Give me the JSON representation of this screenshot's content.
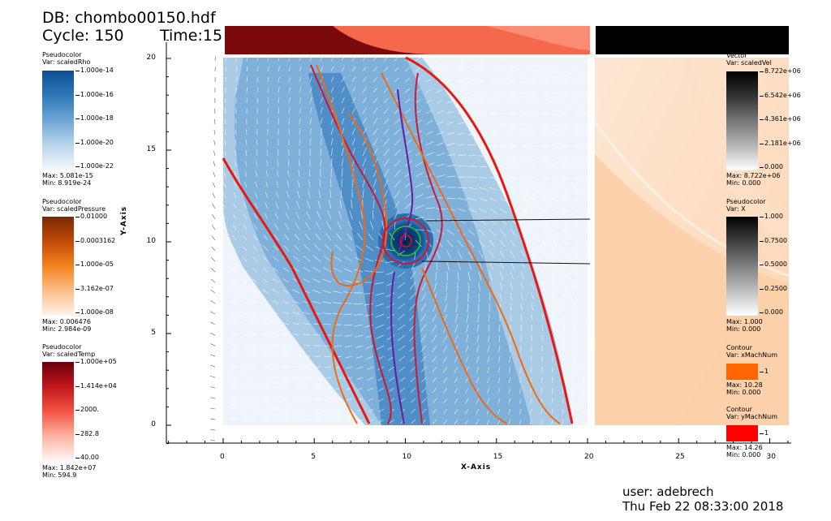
{
  "header": {
    "db": "DB: chombo00150.hdf",
    "cycle": "Cycle: 150",
    "time": "Time:15"
  },
  "footer": {
    "user": "user: adebrech",
    "date": "Thu Feb 22 08:33:00 2018"
  },
  "axes": {
    "xlabel": "X-Axis",
    "ylabel": "Y-Axis",
    "xticks": [
      "0",
      "5",
      "10",
      "15",
      "20",
      "25",
      "30"
    ],
    "yticks": [
      "0",
      "5",
      "10",
      "15",
      "20"
    ],
    "xrange": [
      -3,
      31
    ],
    "yrange": [
      -1,
      21
    ]
  },
  "legends": {
    "rho": {
      "title": "Pseudocolor",
      "var": "Var: scaledRho",
      "ticks": [
        "1.000e-14",
        "1.000e-16",
        "1.000e-18",
        "1.000e-20",
        "1.000e-22"
      ],
      "max": "Max:  5.081e-15",
      "min": "Min:  8.919e-24",
      "colors": [
        "#0b4f92",
        "#2f78b8",
        "#6ea6d4",
        "#b8d4ec",
        "#f5f8fc"
      ]
    },
    "pressure": {
      "title": "Pseudocolor",
      "var": "Var: scaledPressure",
      "ticks": [
        "0.01000",
        "0.0003162",
        "1.000e-05",
        "3.162e-07",
        "1.000e-08"
      ],
      "max": "Max:  0.006476",
      "min": "Min:  2.984e-09",
      "colors": [
        "#7a2a04",
        "#c24a09",
        "#f5831f",
        "#fbbf88",
        "#fff3ea"
      ]
    },
    "temp": {
      "title": "Pseudocolor",
      "var": "Var: scaledTemp",
      "ticks": [
        "1.000e+05",
        "1.414e+04",
        "2000.",
        "282.8",
        "40.00"
      ],
      "max": "Max:  1.842e+07",
      "min": "Min:  594.9",
      "colors": [
        "#67000d",
        "#c3161b",
        "#f35443",
        "#fcb3a1",
        "#fff7f5"
      ]
    },
    "vel": {
      "title": "Vector",
      "var": "Var: scaledVel",
      "ticks": [
        "8.722e+06",
        "6.542e+06",
        "4.361e+06",
        "2.181e+06",
        "0.000"
      ],
      "max": "Max:  8.722e+06",
      "min": "Min:  0.000",
      "colors": [
        "#000000",
        "#333333",
        "#777777",
        "#b5b5b5",
        "#ffffff"
      ]
    },
    "x": {
      "title": "Pseudocolor",
      "var": "Var: X",
      "ticks": [
        "1.000",
        "0.7500",
        "0.5000",
        "0.2500",
        "0.000"
      ],
      "max": "Max:  1.000",
      "min": "Min:  0.000",
      "colors": [
        "#000000",
        "#404040",
        "#808080",
        "#bfbfbf",
        "#ffffff"
      ]
    },
    "xmach": {
      "title": "Contour",
      "var": "Var: xMachNum",
      "tick": "1",
      "max": "Max:  10.28",
      "min": "Min:  0.000",
      "color": "#ff6600"
    },
    "ymach": {
      "title": "Contour",
      "var": "Var: yMachNum",
      "tick": "1",
      "max": "Max:  14.26",
      "min": "Min:  0.000",
      "color": "#ff0000"
    }
  }
}
